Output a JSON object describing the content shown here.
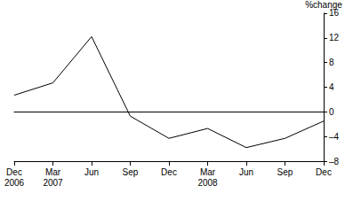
{
  "chart_data": {
    "type": "line",
    "y_label": "%change",
    "categories": [
      "Dec\n2006",
      "Mar\n2007",
      "Jun",
      "Sep",
      "Dec",
      "Mar\n2008",
      "Jun",
      "Sep",
      "Dec"
    ],
    "values": [
      2.7,
      4.7,
      12.2,
      -0.7,
      -4.3,
      -2.7,
      -5.8,
      -4.3,
      -1.5
    ],
    "color": "#000000",
    "ylim": [
      -8,
      16
    ],
    "yticks": [
      {
        "value": -8,
        "label": "–8"
      },
      {
        "value": -4,
        "label": "–4"
      },
      0,
      4,
      8,
      12,
      16
    ],
    "grid": false
  }
}
